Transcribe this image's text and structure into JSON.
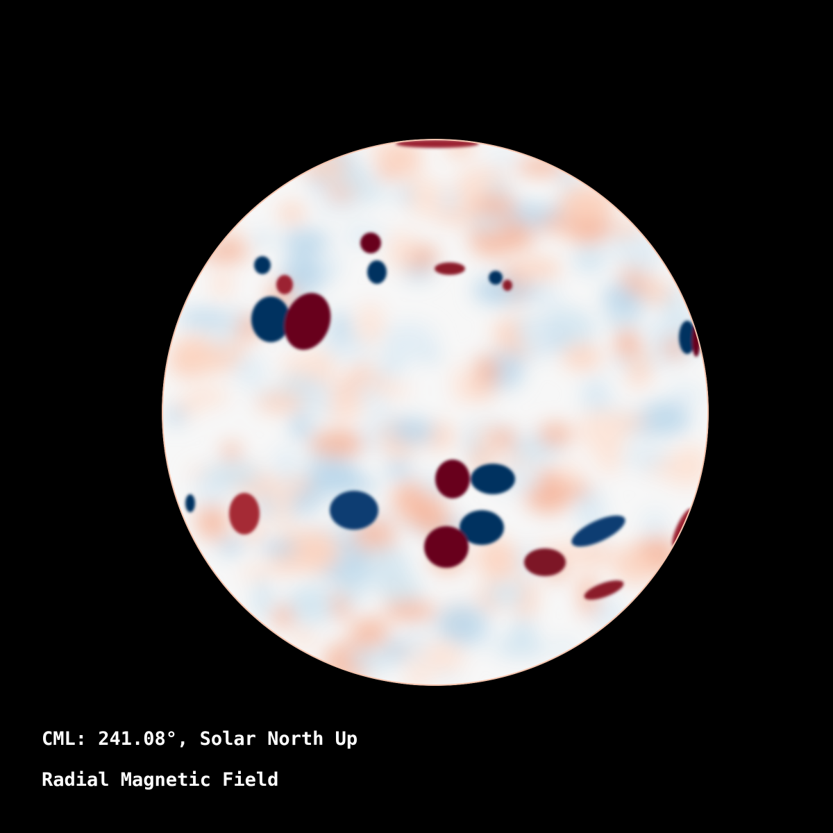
{
  "caption": {
    "cml_line": "CML: 241.08°, Solar North Up",
    "quantity": "Radial Magnetic Field"
  },
  "colors": {
    "background": "#000000",
    "positive_strong": "#67001f",
    "positive_weak": "#fbe0d2",
    "neutral": "#f7f7f7",
    "negative_weak": "#dbe9f3",
    "negative_strong": "#053061"
  }
}
